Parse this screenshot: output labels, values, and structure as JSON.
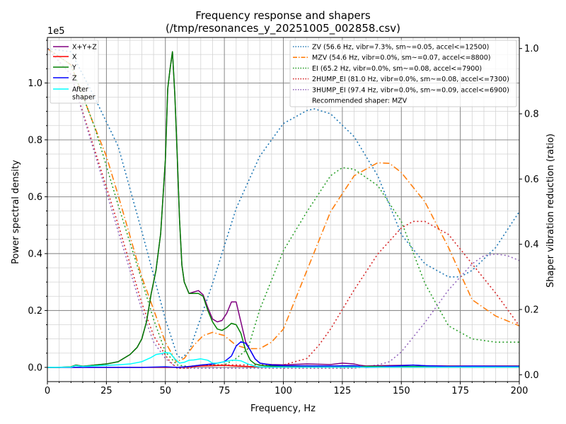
{
  "chart_data": {
    "type": "line",
    "title": "Frequency response and shapers",
    "subtitle": "(/tmp/resonances_y_20251005_002858.csv)",
    "xlabel": "Frequency, Hz",
    "ylabel": "Power spectral density",
    "y2label": "Shaper vibration reduction (ratio)",
    "y_offset_text": "1e5",
    "xlim": [
      0,
      200
    ],
    "ylim": [
      -5000,
      116000
    ],
    "y2lim": [
      -0.021,
      1.034
    ],
    "x_ticks": [
      0,
      25,
      50,
      75,
      100,
      125,
      150,
      175,
      200
    ],
    "x_tick_labels": [
      "0",
      "25",
      "50",
      "75",
      "100",
      "125",
      "150",
      "175",
      "200"
    ],
    "y_ticks": [
      0,
      20000,
      40000,
      60000,
      80000,
      100000
    ],
    "y_tick_labels": [
      "0.0",
      "0.2",
      "0.4",
      "0.6",
      "0.8",
      "1.0"
    ],
    "y2_ticks": [
      0,
      0.2,
      0.4,
      0.6,
      0.8,
      1.0
    ],
    "y2_tick_labels": [
      "0.0",
      "0.2",
      "0.4",
      "0.6",
      "0.8",
      "1.0"
    ],
    "grid": true,
    "minor_grid": true,
    "legend_left": [
      {
        "label": "X+Y+Z",
        "color": "#800080",
        "style": "solid"
      },
      {
        "label": "X",
        "color": "#ff0000",
        "style": "solid"
      },
      {
        "label": "Y",
        "color": "#008000",
        "style": "solid"
      },
      {
        "label": "Z",
        "color": "#0000ff",
        "style": "solid"
      },
      {
        "label": "After\nshaper",
        "color": "#00ffff",
        "style": "solid"
      }
    ],
    "legend_right": [
      {
        "label": "ZV (56.6 Hz, vibr=7.3%, sm~=0.05, accel<=12500)",
        "color": "#1f77b4",
        "style": "dotted"
      },
      {
        "label": "MZV (54.6 Hz, vibr=0.0%, sm~=0.07, accel<=8800)",
        "color": "#ff7f0e",
        "style": "dashdot"
      },
      {
        "label": "EI (65.2 Hz, vibr=0.0%, sm~=0.08, accel<=7900)",
        "color": "#2ca02c",
        "style": "dotted"
      },
      {
        "label": "2HUMP_EI (81.0 Hz, vibr=0.0%, sm~=0.08, accel<=7300)",
        "color": "#d62728",
        "style": "dotted"
      },
      {
        "label": "3HUMP_EI (97.4 Hz, vibr=0.0%, sm~=0.09, accel<=6900)",
        "color": "#9467bd",
        "style": "dotted"
      },
      {
        "label": "Recommended shaper: MZV",
        "color": "",
        "style": "none"
      }
    ],
    "psd_series": [
      {
        "name": "X+Y+Z",
        "color": "#800080",
        "width": 1.5,
        "x": [
          0,
          5,
          10,
          12,
          15,
          20,
          25,
          30,
          35,
          38,
          40,
          42,
          44,
          46,
          48,
          50,
          51,
          52,
          53,
          54,
          55,
          56,
          57,
          58,
          60,
          62,
          64,
          66,
          68,
          70,
          72,
          74,
          76,
          78,
          80,
          82,
          84,
          86,
          88,
          90,
          92,
          95,
          100,
          110,
          120,
          125,
          130,
          132,
          135,
          140,
          150,
          155,
          160,
          170,
          180,
          190,
          200
        ],
        "y": [
          0,
          0,
          200,
          800,
          400,
          800,
          1200,
          2000,
          4500,
          7000,
          10000,
          16000,
          26000,
          34000,
          47000,
          73000,
          98000,
          105000,
          111000,
          96000,
          75000,
          52000,
          36000,
          30000,
          26000,
          26500,
          27000,
          25500,
          21000,
          17000,
          16000,
          16500,
          19000,
          23000,
          23000,
          16000,
          9000,
          6000,
          3000,
          1500,
          1200,
          1000,
          900,
          1200,
          1000,
          1500,
          1200,
          800,
          500,
          600,
          700,
          800,
          600,
          500,
          500,
          500,
          500
        ]
      },
      {
        "name": "X",
        "color": "#ff0000",
        "width": 1.5,
        "x": [
          0,
          20,
          40,
          50,
          55,
          60,
          65,
          70,
          75,
          80,
          85,
          90,
          100,
          120,
          140,
          160,
          180,
          200
        ],
        "y": [
          0,
          0,
          0,
          0,
          0,
          200,
          500,
          600,
          700,
          500,
          300,
          200,
          100,
          100,
          100,
          100,
          100,
          100
        ]
      },
      {
        "name": "Y",
        "color": "#008000",
        "width": 1.5,
        "x": [
          0,
          5,
          10,
          12,
          15,
          20,
          25,
          30,
          35,
          38,
          40,
          42,
          44,
          46,
          48,
          50,
          51,
          52,
          53,
          54,
          55,
          56,
          57,
          58,
          60,
          62,
          64,
          66,
          68,
          70,
          72,
          74,
          76,
          78,
          80,
          82,
          84,
          86,
          88,
          90,
          92,
          95,
          100,
          120,
          140,
          160,
          180,
          200
        ],
        "y": [
          0,
          0,
          200,
          800,
          400,
          800,
          1200,
          2000,
          4500,
          7000,
          10000,
          16000,
          26000,
          34000,
          47000,
          73000,
          98000,
          105000,
          111000,
          96000,
          75000,
          52000,
          36000,
          30000,
          26000,
          26000,
          26000,
          25000,
          20000,
          16000,
          13500,
          13000,
          14000,
          15500,
          15000,
          12000,
          6000,
          2500,
          1200,
          800,
          600,
          500,
          400,
          300,
          300,
          300,
          300,
          300
        ]
      },
      {
        "name": "Z",
        "color": "#0000ff",
        "width": 1.5,
        "x": [
          0,
          20,
          40,
          50,
          55,
          60,
          65,
          70,
          75,
          78,
          80,
          82,
          84,
          86,
          88,
          90,
          95,
          100,
          120,
          130,
          135,
          140,
          150,
          155,
          160,
          170,
          180,
          200
        ],
        "y": [
          0,
          0,
          0,
          200,
          0,
          300,
          800,
          1200,
          2000,
          4000,
          7500,
          9000,
          8500,
          6000,
          3000,
          1500,
          800,
          600,
          500,
          600,
          0,
          100,
          600,
          800,
          600,
          300,
          400,
          300
        ]
      },
      {
        "name": "After shaper",
        "color": "#00ffff",
        "width": 1.5,
        "x": [
          0,
          10,
          12,
          15,
          20,
          25,
          30,
          35,
          40,
          44,
          46,
          48,
          50,
          52,
          54,
          56,
          58,
          60,
          62,
          65,
          68,
          70,
          72,
          75,
          78,
          80,
          82,
          85,
          88,
          90,
          95,
          100,
          110,
          120,
          130,
          140,
          150,
          160,
          170,
          180,
          190,
          200
        ],
        "y": [
          0,
          100,
          600,
          300,
          500,
          700,
          900,
          1200,
          2000,
          3500,
          4500,
          4800,
          5200,
          5000,
          3000,
          1500,
          1800,
          2500,
          2600,
          3000,
          2500,
          1500,
          1500,
          2000,
          2500,
          2500,
          2300,
          1200,
          400,
          200,
          100,
          100,
          100,
          100,
          100,
          100,
          100,
          100,
          100,
          100,
          100,
          100
        ]
      }
    ],
    "shaper_series": [
      {
        "name": "ZV",
        "color": "#1f77b4",
        "dash": "2,3.3",
        "x": [
          0,
          10,
          20,
          25,
          30,
          40,
          50,
          55,
          56.6,
          60,
          70,
          80,
          90,
          100,
          110,
          113.2,
          120,
          130,
          140,
          150,
          160,
          170,
          175,
          180,
          190,
          200
        ],
        "y": [
          1.0,
          0.99,
          0.85,
          0.775,
          0.7,
          0.44,
          0.17,
          0.06,
          0.05,
          0.07,
          0.28,
          0.51,
          0.67,
          0.77,
          0.81,
          0.815,
          0.8,
          0.73,
          0.61,
          0.43,
          0.34,
          0.3,
          0.3,
          0.32,
          0.39,
          0.5
        ]
      },
      {
        "name": "MZV",
        "color": "#ff7f0e",
        "dash": "9,3.3,1.5,3.3",
        "x": [
          0,
          10,
          20,
          25,
          30,
          40,
          45,
          50,
          54.6,
          58,
          62,
          66,
          70,
          75,
          80,
          85,
          90,
          95,
          100,
          110,
          120,
          130,
          140,
          145,
          150,
          160,
          170,
          180,
          190,
          200
        ],
        "y": [
          1.0,
          0.95,
          0.76,
          0.67,
          0.55,
          0.3,
          0.2,
          0.1,
          0.04,
          0.05,
          0.09,
          0.12,
          0.13,
          0.12,
          0.09,
          0.08,
          0.08,
          0.1,
          0.14,
          0.32,
          0.5,
          0.61,
          0.65,
          0.648,
          0.62,
          0.53,
          0.39,
          0.23,
          0.18,
          0.15
        ]
      },
      {
        "name": "EI",
        "color": "#2ca02c",
        "dash": "2,3.3",
        "x": [
          0,
          10,
          20,
          30,
          40,
          45,
          50,
          55,
          60,
          65,
          70,
          75,
          80,
          85,
          90,
          100,
          110,
          120,
          125,
          130,
          140,
          150,
          160,
          170,
          180,
          190,
          200
        ],
        "y": [
          1.0,
          0.95,
          0.76,
          0.52,
          0.29,
          0.17,
          0.07,
          0.03,
          0.025,
          0.03,
          0.03,
          0.03,
          0.05,
          0.08,
          0.2,
          0.38,
          0.5,
          0.61,
          0.635,
          0.63,
          0.58,
          0.47,
          0.28,
          0.15,
          0.11,
          0.1,
          0.1
        ]
      },
      {
        "name": "2HUMP_EI",
        "color": "#d62728",
        "dash": "2,3.3",
        "x": [
          0,
          10,
          20,
          30,
          40,
          45,
          50,
          52,
          55,
          60,
          65,
          70,
          80,
          90,
          100,
          110,
          115,
          120,
          130,
          140,
          150,
          155,
          160,
          170,
          180,
          190,
          200
        ],
        "y": [
          1.0,
          0.92,
          0.69,
          0.46,
          0.22,
          0.12,
          0.06,
          0.04,
          0.02,
          0.02,
          0.03,
          0.03,
          0.03,
          0.03,
          0.03,
          0.05,
          0.09,
          0.14,
          0.26,
          0.37,
          0.45,
          0.47,
          0.47,
          0.43,
          0.34,
          0.25,
          0.15
        ]
      },
      {
        "name": "3HUMP_EI",
        "color": "#9467bd",
        "dash": "2,3.3",
        "x": [
          0,
          10,
          20,
          30,
          40,
          45,
          50,
          55,
          60,
          70,
          80,
          90,
          100,
          110,
          120,
          130,
          140,
          145,
          150,
          160,
          170,
          180,
          185,
          190,
          195,
          200
        ],
        "y": [
          1.0,
          0.92,
          0.68,
          0.44,
          0.2,
          0.1,
          0.05,
          0.02,
          0.02,
          0.02,
          0.02,
          0.02,
          0.02,
          0.02,
          0.02,
          0.02,
          0.03,
          0.04,
          0.07,
          0.16,
          0.26,
          0.34,
          0.365,
          0.37,
          0.365,
          0.35
        ]
      }
    ]
  }
}
